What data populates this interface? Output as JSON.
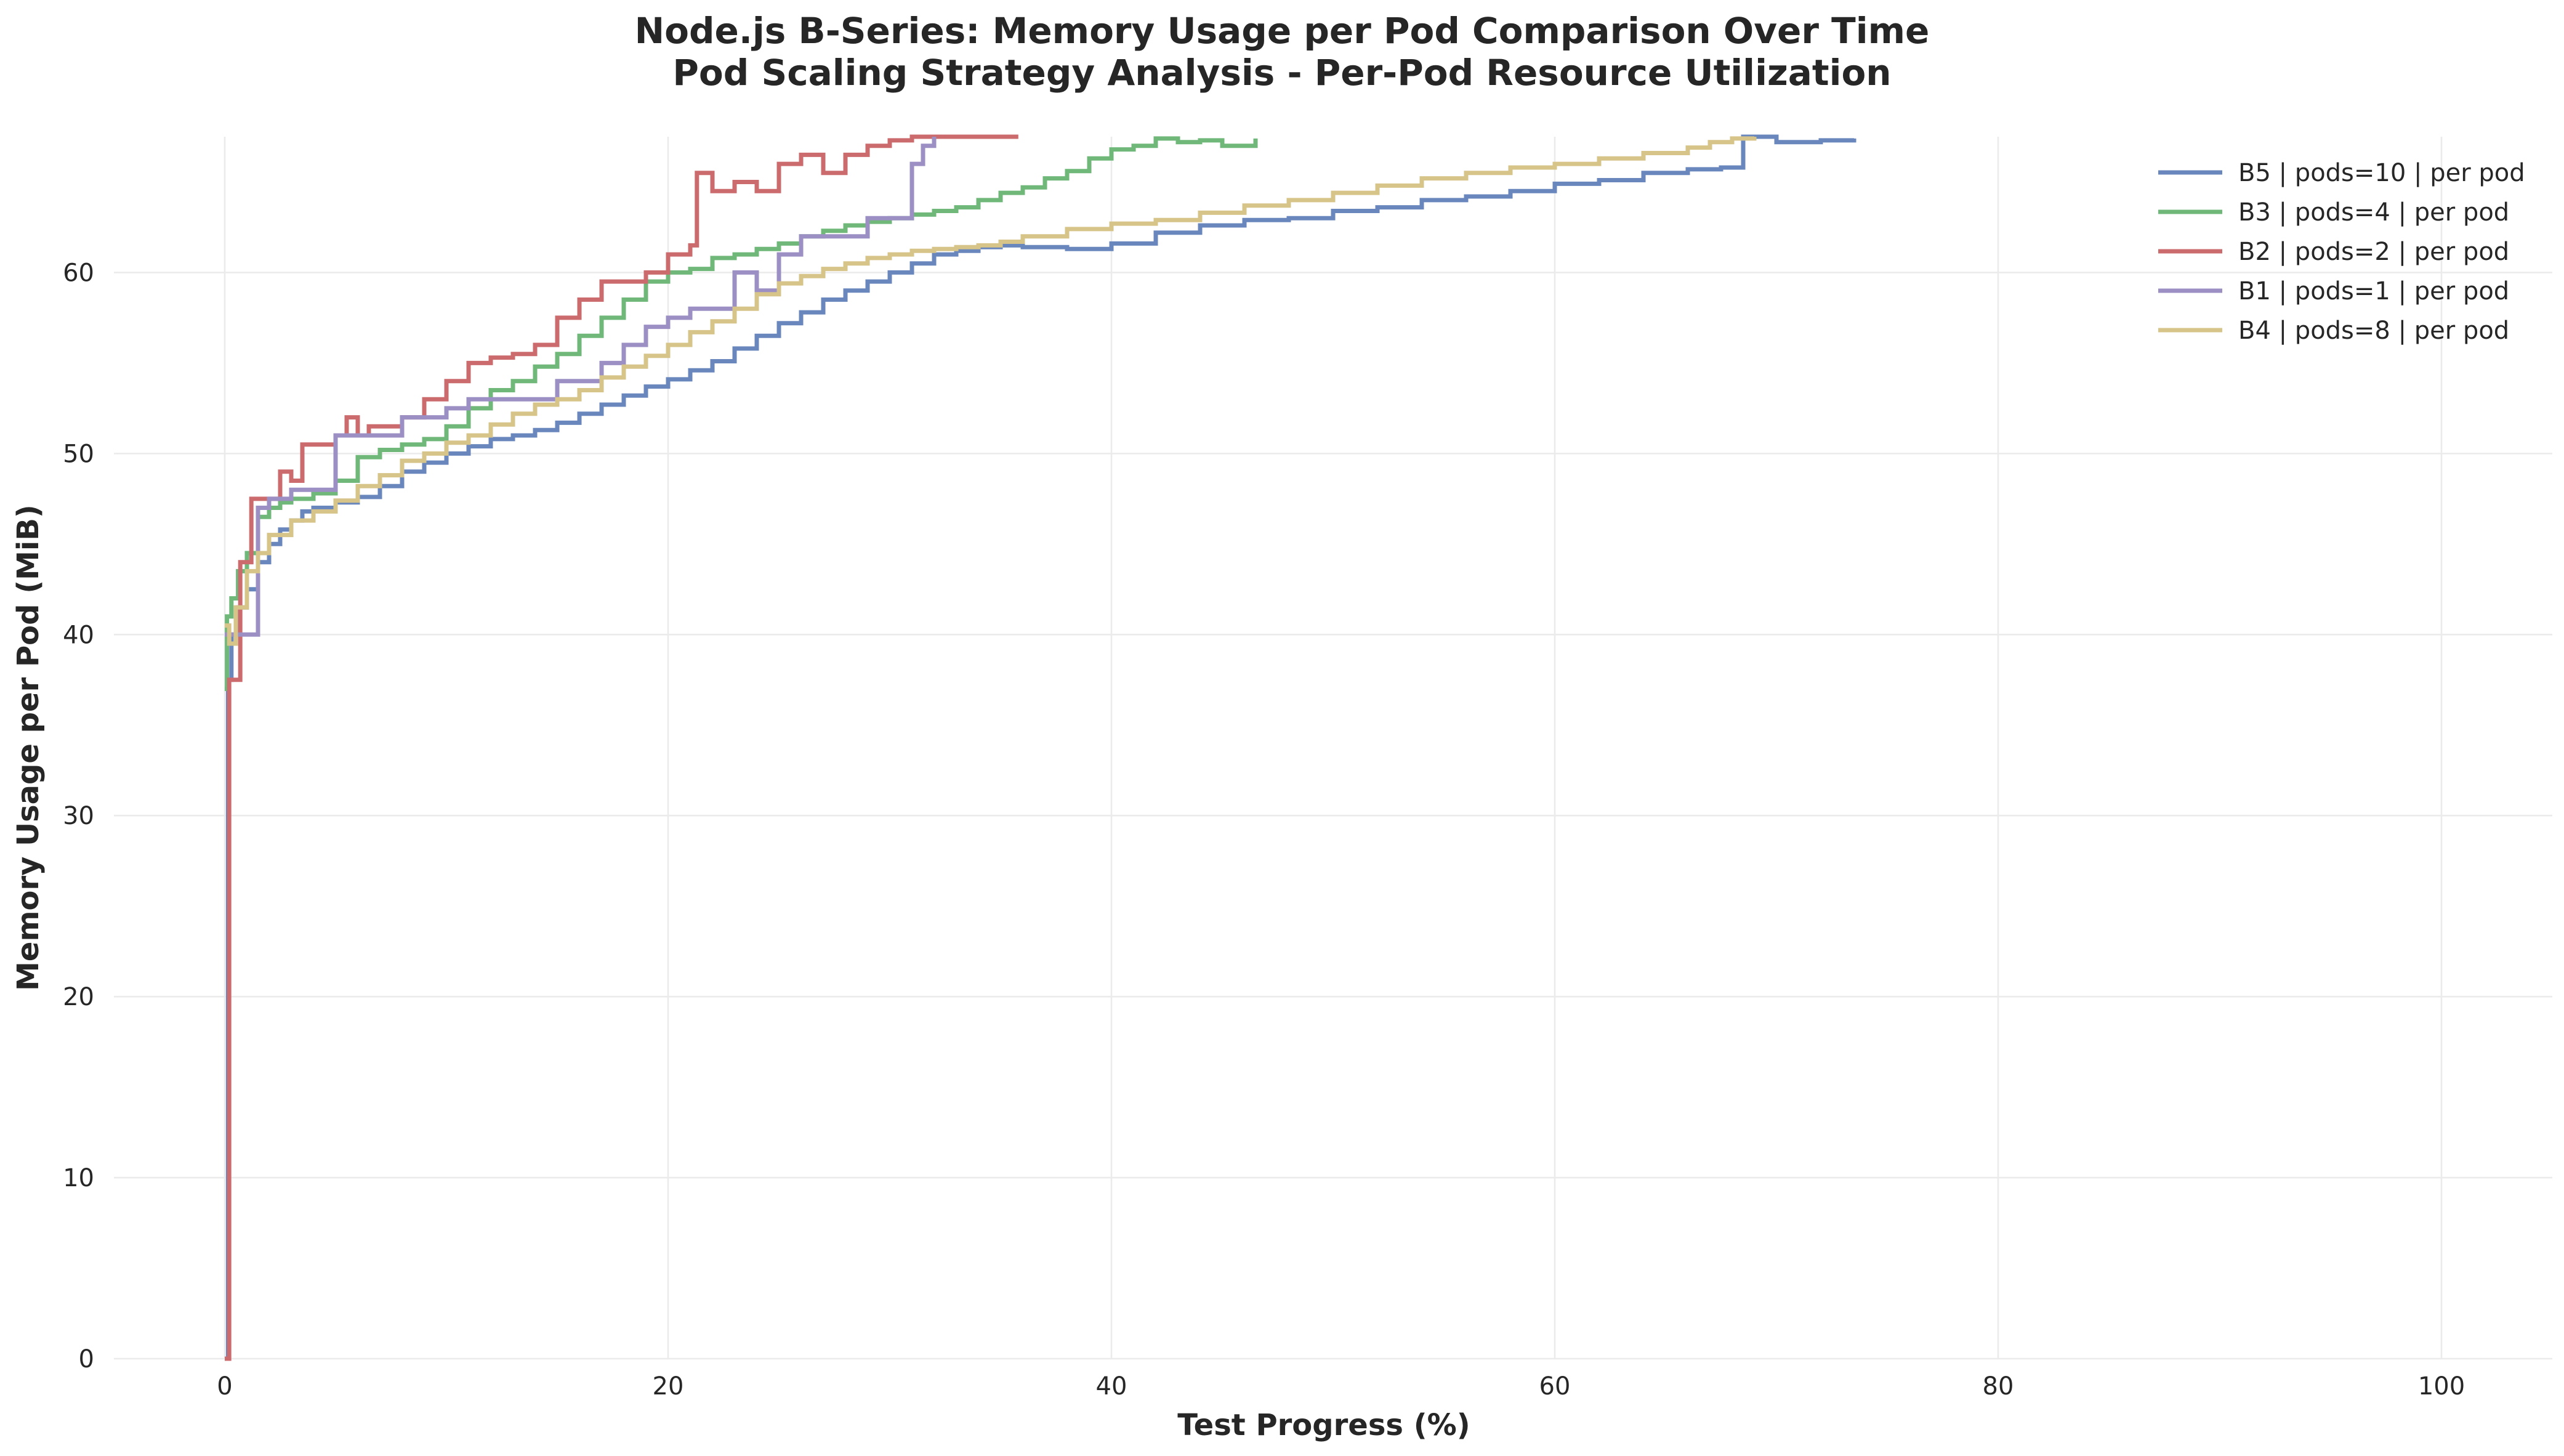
{
  "chart_data": {
    "type": "line",
    "title": "Node.js B-Series: Memory Usage per Pod Comparison Over Time",
    "subtitle": "Pod Scaling Strategy Analysis - Per-Pod Resource Utilization",
    "xlabel": "Test Progress (%)",
    "ylabel": "Memory Usage per Pod (MiB)",
    "xlim": [
      -5,
      105
    ],
    "ylim": [
      0,
      67.5
    ],
    "xticks": [
      0,
      20,
      40,
      60,
      80,
      100
    ],
    "yticks": [
      0,
      10,
      20,
      30,
      40,
      50,
      60
    ],
    "grid": true,
    "legend_position": "top-right",
    "series": [
      {
        "name": "B5 | pods=10 | per pod",
        "color": "#6a87bd",
        "x": [
          0,
          0.15,
          0.3,
          0.6,
          1.0,
          1.5,
          2.0,
          2.5,
          3.0,
          3.5,
          4.0,
          5.0,
          6.0,
          7.0,
          8.0,
          9.0,
          10.0,
          11.0,
          12.0,
          13.0,
          14.0,
          15.0,
          16.0,
          17.0,
          18.0,
          19.0,
          20.0,
          21.0,
          22.0,
          23.0,
          24.0,
          25.0,
          26.0,
          27.0,
          28.0,
          29.0,
          30.0,
          31.0,
          32.0,
          33.0,
          34.0,
          35.0,
          36.0,
          38.0,
          40.0,
          42.0,
          44.0,
          46.0,
          48.0,
          50.0,
          52.0,
          54.0,
          56.0,
          58.0,
          60.0,
          62.0,
          64.0,
          66.0,
          67.5,
          68.5,
          70.0,
          72.0,
          73.5
        ],
        "y": [
          0,
          37.5,
          40.0,
          41.5,
          42.5,
          44.0,
          45.0,
          45.8,
          46.3,
          46.8,
          47.0,
          47.3,
          47.6,
          48.2,
          49.0,
          49.5,
          50.0,
          50.4,
          50.8,
          51.0,
          51.3,
          51.7,
          52.2,
          52.7,
          53.2,
          53.7,
          54.1,
          54.6,
          55.1,
          55.8,
          56.5,
          57.2,
          57.8,
          58.5,
          59.0,
          59.5,
          60.0,
          60.5,
          61.0,
          61.2,
          61.4,
          61.5,
          61.4,
          61.3,
          61.6,
          62.2,
          62.6,
          62.9,
          63.0,
          63.4,
          63.6,
          64.0,
          64.2,
          64.5,
          64.9,
          65.1,
          65.5,
          65.7,
          65.8,
          67.5,
          67.2,
          67.3,
          67.4
        ]
      },
      {
        "name": "B3 | pods=4 | per pod",
        "color": "#6fb879",
        "x": [
          0,
          0.1,
          0.3,
          0.6,
          1.0,
          1.5,
          2.0,
          2.5,
          3.0,
          4.0,
          5.0,
          6.0,
          7.0,
          8.0,
          9.0,
          10.0,
          11.0,
          12.0,
          13.0,
          14.0,
          15.0,
          16.0,
          17.0,
          18.0,
          19.0,
          20.0,
          21.0,
          22.0,
          23.0,
          24.0,
          25.0,
          26.0,
          27.0,
          28.0,
          29.0,
          30.0,
          31.0,
          32.0,
          33.0,
          34.0,
          35.0,
          36.0,
          37.0,
          38.0,
          39.0,
          40.0,
          41.0,
          42.0,
          43.0,
          44.0,
          45.0,
          46.5
        ],
        "y": [
          37.0,
          41.0,
          42.0,
          43.5,
          44.5,
          46.5,
          47.0,
          47.3,
          47.5,
          47.8,
          48.5,
          49.8,
          50.2,
          50.5,
          50.8,
          51.5,
          52.5,
          53.5,
          54.0,
          54.8,
          55.5,
          56.5,
          57.5,
          58.5,
          59.5,
          60.0,
          60.2,
          60.8,
          61.0,
          61.3,
          61.6,
          62.0,
          62.3,
          62.6,
          62.8,
          63.0,
          63.2,
          63.4,
          63.6,
          64.0,
          64.4,
          64.7,
          65.2,
          65.6,
          66.3,
          66.8,
          67.0,
          67.4,
          67.2,
          67.3,
          67.0,
          67.4
        ]
      },
      {
        "name": "B2 | pods=2 | per pod",
        "color": "#cc6b6e",
        "x": [
          0,
          0.2,
          0.4,
          0.7,
          1.2,
          2.0,
          2.5,
          3.0,
          3.5,
          4.0,
          5.0,
          5.5,
          6.0,
          6.5,
          7.0,
          8.0,
          9.0,
          10.0,
          11.0,
          12.0,
          13.0,
          14.0,
          15.0,
          16.0,
          17.0,
          18.0,
          19.0,
          20.0,
          21.0,
          21.3,
          22.0,
          23.0,
          24.0,
          25.0,
          26.0,
          27.0,
          28.0,
          29.0,
          30.0,
          31.0,
          32.0,
          33.0,
          34.0,
          35.0,
          35.8
        ],
        "y": [
          0,
          37.5,
          37.5,
          44.0,
          47.5,
          47.5,
          49.0,
          48.5,
          50.5,
          50.5,
          51.0,
          52.0,
          51.0,
          51.5,
          51.5,
          52.0,
          53.0,
          54.0,
          55.0,
          55.3,
          55.5,
          56.0,
          57.5,
          58.5,
          59.5,
          59.5,
          60.0,
          61.0,
          61.5,
          65.5,
          64.5,
          65.0,
          64.5,
          66.0,
          66.5,
          65.5,
          66.5,
          67.0,
          67.3,
          67.5,
          67.5,
          67.5,
          67.5,
          67.5,
          67.5
        ]
      },
      {
        "name": "B1 | pods=1 | per pod",
        "color": "#9b8fc4",
        "x": [
          0,
          0.5,
          1.5,
          2.0,
          3.0,
          4.0,
          5.0,
          6.0,
          7.0,
          8.0,
          9.0,
          10.0,
          11.0,
          12.0,
          13.0,
          14.0,
          15.0,
          16.0,
          17.0,
          18.0,
          19.0,
          20.0,
          21.0,
          22.0,
          23.0,
          24.0,
          25.0,
          26.0,
          27.0,
          28.0,
          29.0,
          30.0,
          31.0,
          31.5,
          32.0
        ],
        "y": [
          40.0,
          40.0,
          47.0,
          47.5,
          48.0,
          48.0,
          51.0,
          51.0,
          51.0,
          52.0,
          52.0,
          52.5,
          53.0,
          53.0,
          53.0,
          53.0,
          54.0,
          54.0,
          55.0,
          56.0,
          57.0,
          57.5,
          58.0,
          58.0,
          60.0,
          59.0,
          61.0,
          62.0,
          62.0,
          62.0,
          63.0,
          63.0,
          66.0,
          67.0,
          67.5
        ]
      },
      {
        "name": "B4 | pods=8 | per pod",
        "color": "#d6c488",
        "x": [
          0,
          0.2,
          0.5,
          1.0,
          1.5,
          2.0,
          3.0,
          4.0,
          5.0,
          6.0,
          7.0,
          8.0,
          9.0,
          10.0,
          11.0,
          12.0,
          13.0,
          14.0,
          15.0,
          16.0,
          17.0,
          18.0,
          19.0,
          20.0,
          21.0,
          22.0,
          23.0,
          24.0,
          25.0,
          26.0,
          27.0,
          28.0,
          29.0,
          30.0,
          31.0,
          32.0,
          33.0,
          34.0,
          35.0,
          36.0,
          38.0,
          40.0,
          42.0,
          44.0,
          46.0,
          48.0,
          50.0,
          52.0,
          54.0,
          56.0,
          58.0,
          60.0,
          62.0,
          64.0,
          66.0,
          67.0,
          68.0,
          69.0
        ],
        "y": [
          40.5,
          39.5,
          41.5,
          43.5,
          44.5,
          45.5,
          46.3,
          46.8,
          47.4,
          48.2,
          48.8,
          49.6,
          50.0,
          50.6,
          51.0,
          51.6,
          52.2,
          52.7,
          53.0,
          53.5,
          54.2,
          54.8,
          55.4,
          56.0,
          56.7,
          57.3,
          58.0,
          58.8,
          59.4,
          59.8,
          60.2,
          60.5,
          60.8,
          61.0,
          61.2,
          61.3,
          61.4,
          61.5,
          61.7,
          62.0,
          62.4,
          62.7,
          62.9,
          63.3,
          63.7,
          64.0,
          64.4,
          64.8,
          65.2,
          65.5,
          65.8,
          66.0,
          66.3,
          66.6,
          66.9,
          67.2,
          67.4,
          67.5
        ]
      }
    ]
  }
}
